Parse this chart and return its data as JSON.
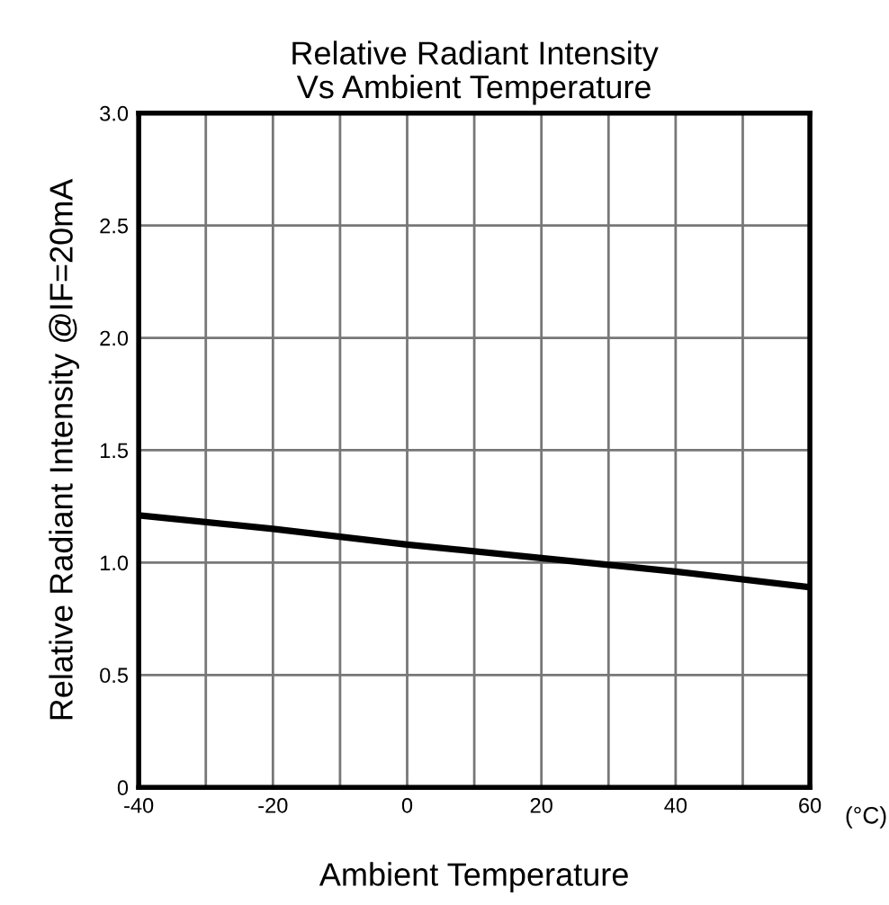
{
  "chart_data": {
    "type": "line",
    "title": "Relative Radiant Intensity\nVs Ambient Temperature",
    "xlabel": "Ambient Temperature",
    "ylabel": "Relative Radiant Intensity @IF=20mA",
    "x": [
      -40,
      -20,
      0,
      20,
      40,
      60
    ],
    "series": [
      {
        "color": "#000000",
        "values": [
          1.21,
          1.15,
          1.08,
          1.02,
          0.96,
          0.89
        ]
      }
    ],
    "xlim": [
      -40,
      60
    ],
    "ylim": [
      0,
      3.0
    ],
    "xticks": [
      -40,
      {
        "value": -30,
        "label": null
      },
      -20,
      {
        "value": -10,
        "label": null
      },
      0,
      {
        "value": 10,
        "label": null
      },
      20,
      {
        "value": 30,
        "label": null
      },
      40,
      {
        "value": 50,
        "label": null
      },
      60
    ],
    "yticks": [
      0,
      0.5,
      {
        "value": 1,
        "label": "1.0"
      },
      1.5,
      {
        "value": 2,
        "label": "2.0"
      },
      2.5,
      {
        "value": 3,
        "label": "3.0"
      }
    ],
    "annotations": [
      "(°C)"
    ],
    "grid": true,
    "marker": "none",
    "line_style": "solid"
  }
}
